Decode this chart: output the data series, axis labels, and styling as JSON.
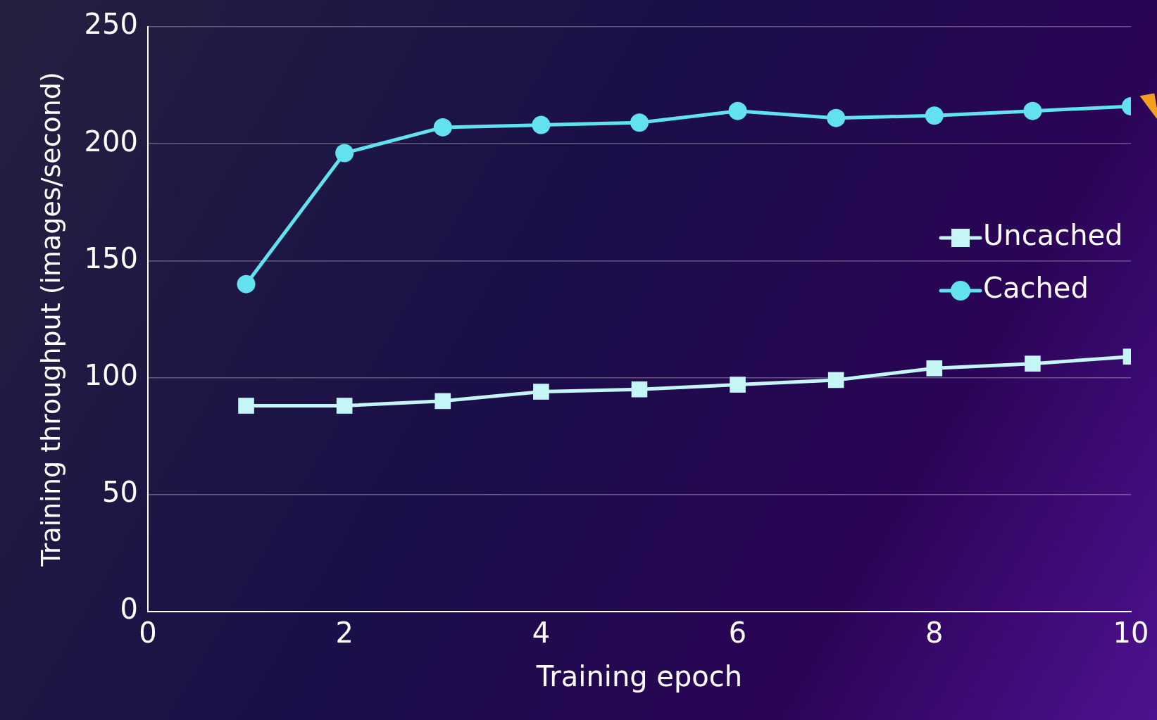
{
  "chart_data": {
    "type": "line",
    "xlabel": "Training epoch",
    "ylabel": "Training throughput (images/second)",
    "x": [
      1,
      2,
      3,
      4,
      5,
      6,
      7,
      8,
      9,
      10
    ],
    "series": [
      {
        "name": "Uncached",
        "color": "#c4f6f6",
        "marker": "square",
        "values": [
          88,
          88,
          90,
          94,
          95,
          97,
          99,
          104,
          106,
          109
        ]
      },
      {
        "name": "Cached",
        "color": "#62e2ee",
        "marker": "circle",
        "values": [
          140,
          196,
          207,
          208,
          209,
          214,
          211,
          212,
          214,
          216
        ]
      }
    ],
    "xlim": [
      0,
      10
    ],
    "xticks": [
      0,
      2,
      4,
      6,
      8,
      10
    ],
    "ylim": [
      0,
      250
    ],
    "yticks": [
      0,
      50,
      100,
      150,
      200,
      250
    ],
    "grid": "y",
    "legend": "right"
  }
}
